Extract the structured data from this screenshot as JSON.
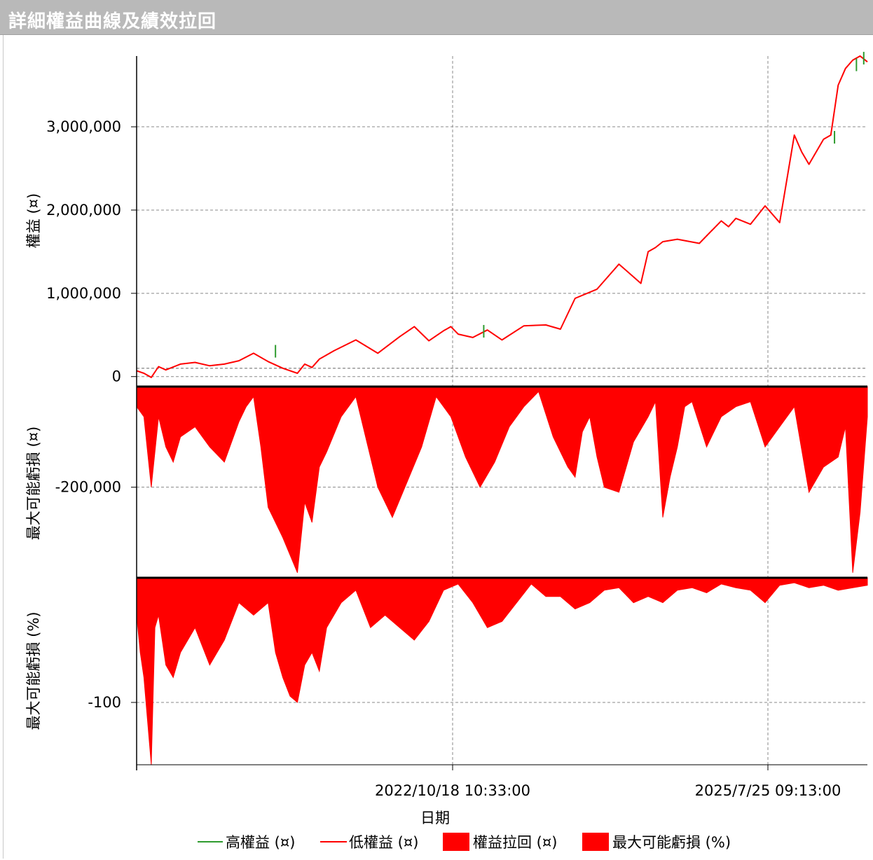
{
  "window": {
    "title": "詳細權益曲線及績效拉回"
  },
  "chart_data": {
    "type": "line",
    "xlabel": "日期",
    "x_ticks": [
      "2022/10/18 10:33:00",
      "2025/7/25 09:13:00"
    ],
    "legend": [
      {
        "name": "高權益 (¤)",
        "kind": "line",
        "color": "#2e9b2e"
      },
      {
        "name": "低權益 (¤)",
        "kind": "line",
        "color": "#ff0000"
      },
      {
        "name": "權益拉回 (¤)",
        "kind": "box",
        "color": "#ff0000"
      },
      {
        "name": "最大可能虧損 (%)",
        "kind": "box",
        "color": "#ff0000"
      }
    ],
    "panels": [
      {
        "id": "equity",
        "ylabel": "權益 (¤)",
        "yticks": [
          {
            "v": 0,
            "label": "0"
          },
          {
            "v": 1000000,
            "label": "1,000,000"
          },
          {
            "v": 2000000,
            "label": "2,000,000"
          },
          {
            "v": 3000000,
            "label": "3,000,000"
          }
        ],
        "ylim": [
          -120000,
          3850000
        ],
        "series": [
          {
            "name": "低權益 (¤)",
            "color": "#ff0000",
            "x": [
              0,
              0.01,
              0.02,
              0.03,
              0.04,
              0.06,
              0.08,
              0.1,
              0.12,
              0.14,
              0.16,
              0.18,
              0.2,
              0.22,
              0.23,
              0.24,
              0.25,
              0.27,
              0.3,
              0.33,
              0.36,
              0.38,
              0.4,
              0.42,
              0.43,
              0.44,
              0.46,
              0.48,
              0.5,
              0.53,
              0.56,
              0.58,
              0.6,
              0.63,
              0.66,
              0.69,
              0.7,
              0.71,
              0.72,
              0.74,
              0.77,
              0.8,
              0.81,
              0.82,
              0.84,
              0.86,
              0.88,
              0.9,
              0.91,
              0.92,
              0.94,
              0.95,
              0.96,
              0.97,
              0.98,
              0.99,
              1.0
            ],
            "values": [
              70000,
              40000,
              -10000,
              120000,
              80000,
              150000,
              170000,
              130000,
              150000,
              190000,
              280000,
              180000,
              100000,
              40000,
              150000,
              110000,
              210000,
              310000,
              440000,
              280000,
              480000,
              600000,
              430000,
              550000,
              600000,
              510000,
              470000,
              560000,
              440000,
              610000,
              620000,
              570000,
              940000,
              1050000,
              1350000,
              1120000,
              1500000,
              1550000,
              1620000,
              1650000,
              1600000,
              1870000,
              1800000,
              1900000,
              1830000,
              2050000,
              1850000,
              2900000,
              2700000,
              2550000,
              2850000,
              2900000,
              3500000,
              3700000,
              3800000,
              3850000,
              3780000
            ]
          },
          {
            "name": "高權益 (¤)",
            "color": "#2e9b2e",
            "x": [
              0.19,
              0.475,
              0.955,
              0.985,
              0.995
            ],
            "values": [
              380000,
              620000,
              2950000,
              3820000,
              3900000
            ]
          }
        ]
      },
      {
        "id": "drawdown",
        "ylabel": "最大可能虧損 (¤)",
        "yticks": [
          {
            "v": -200000,
            "label": "-200,000"
          }
        ],
        "ylim": [
          -380000,
          0
        ],
        "series": [
          {
            "name": "權益拉回 (¤)",
            "color": "#ff0000",
            "x": [
              0,
              0.01,
              0.02,
              0.03,
              0.04,
              0.05,
              0.06,
              0.08,
              0.1,
              0.12,
              0.14,
              0.15,
              0.16,
              0.17,
              0.18,
              0.2,
              0.22,
              0.23,
              0.24,
              0.25,
              0.26,
              0.28,
              0.3,
              0.33,
              0.35,
              0.37,
              0.39,
              0.41,
              0.43,
              0.45,
              0.47,
              0.49,
              0.51,
              0.53,
              0.55,
              0.57,
              0.59,
              0.6,
              0.61,
              0.62,
              0.63,
              0.64,
              0.66,
              0.68,
              0.7,
              0.71,
              0.72,
              0.73,
              0.74,
              0.75,
              0.76,
              0.78,
              0.8,
              0.82,
              0.84,
              0.86,
              0.88,
              0.9,
              0.92,
              0.94,
              0.96,
              0.97,
              0.98,
              0.99,
              1.0
            ],
            "values": [
              -40000,
              -60000,
              -200000,
              -60000,
              -120000,
              -150000,
              -100000,
              -80000,
              -120000,
              -150000,
              -70000,
              -40000,
              -20000,
              -120000,
              -240000,
              -300000,
              -370000,
              -230000,
              -270000,
              -160000,
              -130000,
              -60000,
              -20000,
              -200000,
              -260000,
              -190000,
              -120000,
              -20000,
              -60000,
              -140000,
              -200000,
              -150000,
              -80000,
              -40000,
              -10000,
              -100000,
              -160000,
              -180000,
              -90000,
              -60000,
              -140000,
              -200000,
              -210000,
              -110000,
              -60000,
              -30000,
              -260000,
              -180000,
              -120000,
              -40000,
              -30000,
              -120000,
              -60000,
              -40000,
              -30000,
              -120000,
              -80000,
              -40000,
              -210000,
              -160000,
              -140000,
              -80000,
              -370000,
              -250000,
              -60000
            ]
          }
        ]
      },
      {
        "id": "pct",
        "ylabel": "最大可能虧損 (%)",
        "yticks": [
          {
            "v": -100,
            "label": "-100"
          }
        ],
        "ylim": [
          -150,
          0
        ],
        "series": [
          {
            "name": "最大可能虧損 (%)",
            "color": "#ff0000",
            "x": [
              0,
              0.005,
              0.01,
              0.02,
              0.025,
              0.03,
              0.04,
              0.05,
              0.06,
              0.08,
              0.1,
              0.12,
              0.14,
              0.16,
              0.18,
              0.19,
              0.2,
              0.21,
              0.22,
              0.23,
              0.24,
              0.25,
              0.26,
              0.28,
              0.3,
              0.32,
              0.34,
              0.36,
              0.38,
              0.4,
              0.42,
              0.44,
              0.46,
              0.48,
              0.5,
              0.52,
              0.54,
              0.56,
              0.58,
              0.6,
              0.62,
              0.64,
              0.66,
              0.68,
              0.7,
              0.72,
              0.74,
              0.76,
              0.78,
              0.8,
              0.82,
              0.84,
              0.86,
              0.88,
              0.9,
              0.92,
              0.94,
              0.96,
              0.98,
              1.0
            ],
            "values": [
              -30,
              -60,
              -80,
              -150,
              -40,
              -30,
              -70,
              -80,
              -60,
              -40,
              -70,
              -50,
              -20,
              -30,
              -20,
              -60,
              -80,
              -95,
              -100,
              -70,
              -60,
              -75,
              -40,
              -20,
              -10,
              -40,
              -30,
              -40,
              -50,
              -35,
              -10,
              -5,
              -20,
              -40,
              -35,
              -20,
              -5,
              -15,
              -15,
              -25,
              -20,
              -10,
              -8,
              -20,
              -15,
              -20,
              -10,
              -8,
              -12,
              -5,
              -8,
              -10,
              -20,
              -6,
              -4,
              -8,
              -6,
              -10,
              -8,
              -6
            ]
          }
        ]
      }
    ]
  }
}
